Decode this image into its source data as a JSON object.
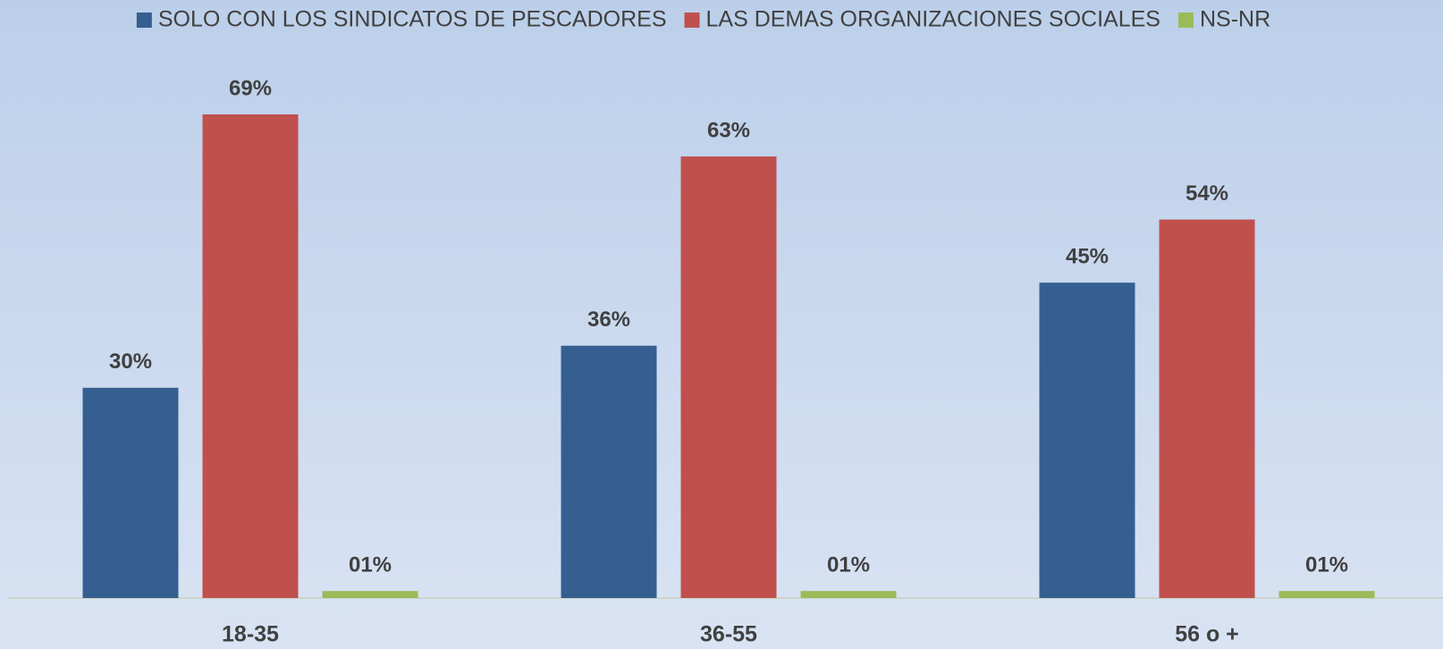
{
  "chart_data": {
    "type": "bar",
    "categories": [
      "18-35",
      "36-55",
      "56 o +"
    ],
    "series": [
      {
        "name": "SOLO CON LOS SINDICATOS DE PESCADORES",
        "color": "#355f91",
        "values": [
          30,
          36,
          45
        ],
        "value_labels": [
          "30%",
          "36%",
          "45%"
        ]
      },
      {
        "name": "LAS DEMAS ORGANIZACIONES SOCIALES",
        "color": "#c0504d",
        "values": [
          69,
          63,
          54
        ],
        "value_labels": [
          "69%",
          "63%",
          "54%"
        ]
      },
      {
        "name": "NS-NR",
        "color": "#9bbb59",
        "values": [
          1,
          1,
          1
        ],
        "value_labels": [
          "01%",
          "01%",
          "01%"
        ]
      }
    ],
    "legend": "top"
  }
}
